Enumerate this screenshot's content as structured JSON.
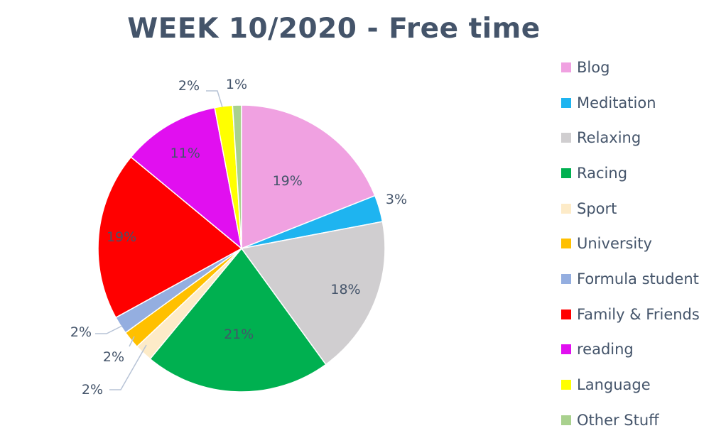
{
  "chart_data": {
    "type": "pie",
    "title": "WEEK 10/2020 - Free time",
    "legend_position": "right",
    "slices": [
      {
        "name": "Blog",
        "value": 19,
        "label": "19%",
        "color": "#f0a1e1"
      },
      {
        "name": "Meditation",
        "value": 3,
        "label": "3%",
        "color": "#1eb4f0"
      },
      {
        "name": "Relaxing",
        "value": 18,
        "label": "18%",
        "color": "#d0ced0"
      },
      {
        "name": "Racing",
        "value": 21,
        "label": "21%",
        "color": "#00b050"
      },
      {
        "name": "Sport",
        "value": 2,
        "label": "2%",
        "color": "#fdebc8"
      },
      {
        "name": "University",
        "value": 2,
        "label": "2%",
        "color": "#ffc000"
      },
      {
        "name": "Formula student",
        "value": 2,
        "label": "2%",
        "color": "#94aee0"
      },
      {
        "name": "Family & Friends",
        "value": 19,
        "label": "19%",
        "color": "#ff0000"
      },
      {
        "name": "reading",
        "value": 11,
        "label": "11%",
        "color": "#e10ff0"
      },
      {
        "name": "Language",
        "value": 2,
        "label": "2%",
        "color": "#ffff00"
      },
      {
        "name": "Other Stuff",
        "value": 1,
        "label": "1%",
        "color": "#a9d18e"
      }
    ]
  }
}
